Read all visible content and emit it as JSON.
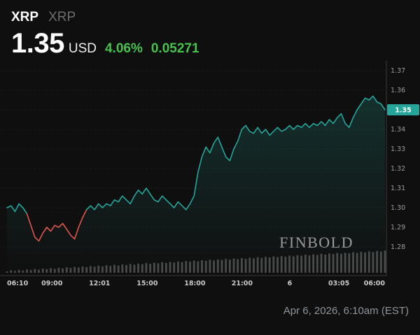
{
  "header": {
    "symbol": "XRP",
    "name": "XRP",
    "price": "1.35",
    "currency": "USD",
    "change_percent": "4.06%",
    "change_abs": "0.05271"
  },
  "watermark": "FINBOLD",
  "footer": {
    "timestamp": "Apr 6, 2026, 6:10am (EST)"
  },
  "colors": {
    "background": "#0f0f0f",
    "up": "#26a69a",
    "down": "#e0564f",
    "green_text": "#47c24e"
  },
  "chart_data": {
    "type": "line",
    "xlabel": "",
    "ylabel": "",
    "ylim": [
      1.28,
      1.37
    ],
    "y_min": 1.28,
    "y_max": 1.37,
    "grid": "horizontal-dotted",
    "legend": "none",
    "last_price": "1.35",
    "x_ticks": [
      {
        "label": "06:10",
        "pos": 0.0
      },
      {
        "label": "09:00",
        "pos": 0.119
      },
      {
        "label": "12:01",
        "pos": 0.245
      },
      {
        "label": "15:00",
        "pos": 0.371
      },
      {
        "label": "18:00",
        "pos": 0.497
      },
      {
        "label": "21:00",
        "pos": 0.622
      },
      {
        "label": "6",
        "pos": 0.748
      },
      {
        "label": "03:05",
        "pos": 0.878
      },
      {
        "label": "06:00",
        "pos": 1.0
      }
    ],
    "y_ticks": [
      {
        "label": "1.37",
        "value": 1.37
      },
      {
        "label": "1.36",
        "value": 1.36
      },
      {
        "label": "1.35",
        "value": 1.35
      },
      {
        "label": "1.34",
        "value": 1.34
      },
      {
        "label": "1.33",
        "value": 1.33
      },
      {
        "label": "1.32",
        "value": 1.32
      },
      {
        "label": "1.31",
        "value": 1.31
      },
      {
        "label": "1.30",
        "value": 1.3
      },
      {
        "label": "1.29",
        "value": 1.29
      },
      {
        "label": "1.28",
        "value": 1.28
      }
    ],
    "red_segment": [
      5,
      20
    ],
    "prices": [
      1.3,
      1.301,
      1.298,
      1.302,
      1.3,
      1.297,
      1.291,
      1.285,
      1.283,
      1.287,
      1.29,
      1.288,
      1.291,
      1.29,
      1.292,
      1.289,
      1.286,
      1.284,
      1.29,
      1.295,
      1.299,
      1.301,
      1.299,
      1.302,
      1.3,
      1.302,
      1.301,
      1.304,
      1.303,
      1.306,
      1.304,
      1.302,
      1.306,
      1.309,
      1.307,
      1.31,
      1.307,
      1.304,
      1.303,
      1.306,
      1.304,
      1.302,
      1.3,
      1.303,
      1.301,
      1.299,
      1.302,
      1.306,
      1.318,
      1.326,
      1.331,
      1.328,
      1.333,
      1.336,
      1.331,
      1.326,
      1.324,
      1.33,
      1.334,
      1.34,
      1.342,
      1.339,
      1.338,
      1.341,
      1.338,
      1.34,
      1.337,
      1.339,
      1.341,
      1.339,
      1.34,
      1.342,
      1.34,
      1.342,
      1.341,
      1.343,
      1.341,
      1.343,
      1.342,
      1.344,
      1.342,
      1.345,
      1.343,
      1.346,
      1.348,
      1.343,
      1.341,
      1.346,
      1.35,
      1.353,
      1.356,
      1.355,
      1.357,
      1.354,
      1.353,
      1.35
    ],
    "volumes": [
      2.0,
      3.5,
      2.7,
      4.2,
      3.2,
      4.7,
      3.9,
      5.4,
      4.4,
      5.9,
      5.1,
      6.6,
      5.6,
      7.1,
      6.3,
      7.8,
      6.8,
      8.3,
      7.5,
      9.0,
      8.0,
      9.5,
      8.7,
      10.2,
      9.2,
      10.7,
      9.9,
      11.4,
      10.4,
      11.9,
      11.1,
      12.6,
      11.6,
      13.1,
      12.3,
      13.8,
      12.8,
      14.3,
      13.5,
      15.0,
      14.0,
      15.5,
      14.7,
      16.2,
      15.2,
      16.7,
      15.9,
      17.4,
      16.4,
      17.9,
      17.1,
      18.6,
      17.6,
      19.1,
      18.3,
      19.8,
      18.8,
      20.3,
      19.5,
      21.0,
      20.0,
      21.5,
      20.7,
      22.2,
      21.2,
      22.7,
      21.9,
      23.4,
      22.4,
      23.9,
      23.1,
      24.6,
      23.6,
      25.1,
      24.3,
      25.8,
      24.8,
      26.3,
      25.5,
      27.0,
      26.0,
      27.5,
      26.7,
      28.2,
      27.2,
      28.7,
      27.9,
      29.4,
      28.4,
      29.9,
      29.1,
      30.6,
      29.6,
      31.1,
      30.3,
      31.8
    ]
  }
}
